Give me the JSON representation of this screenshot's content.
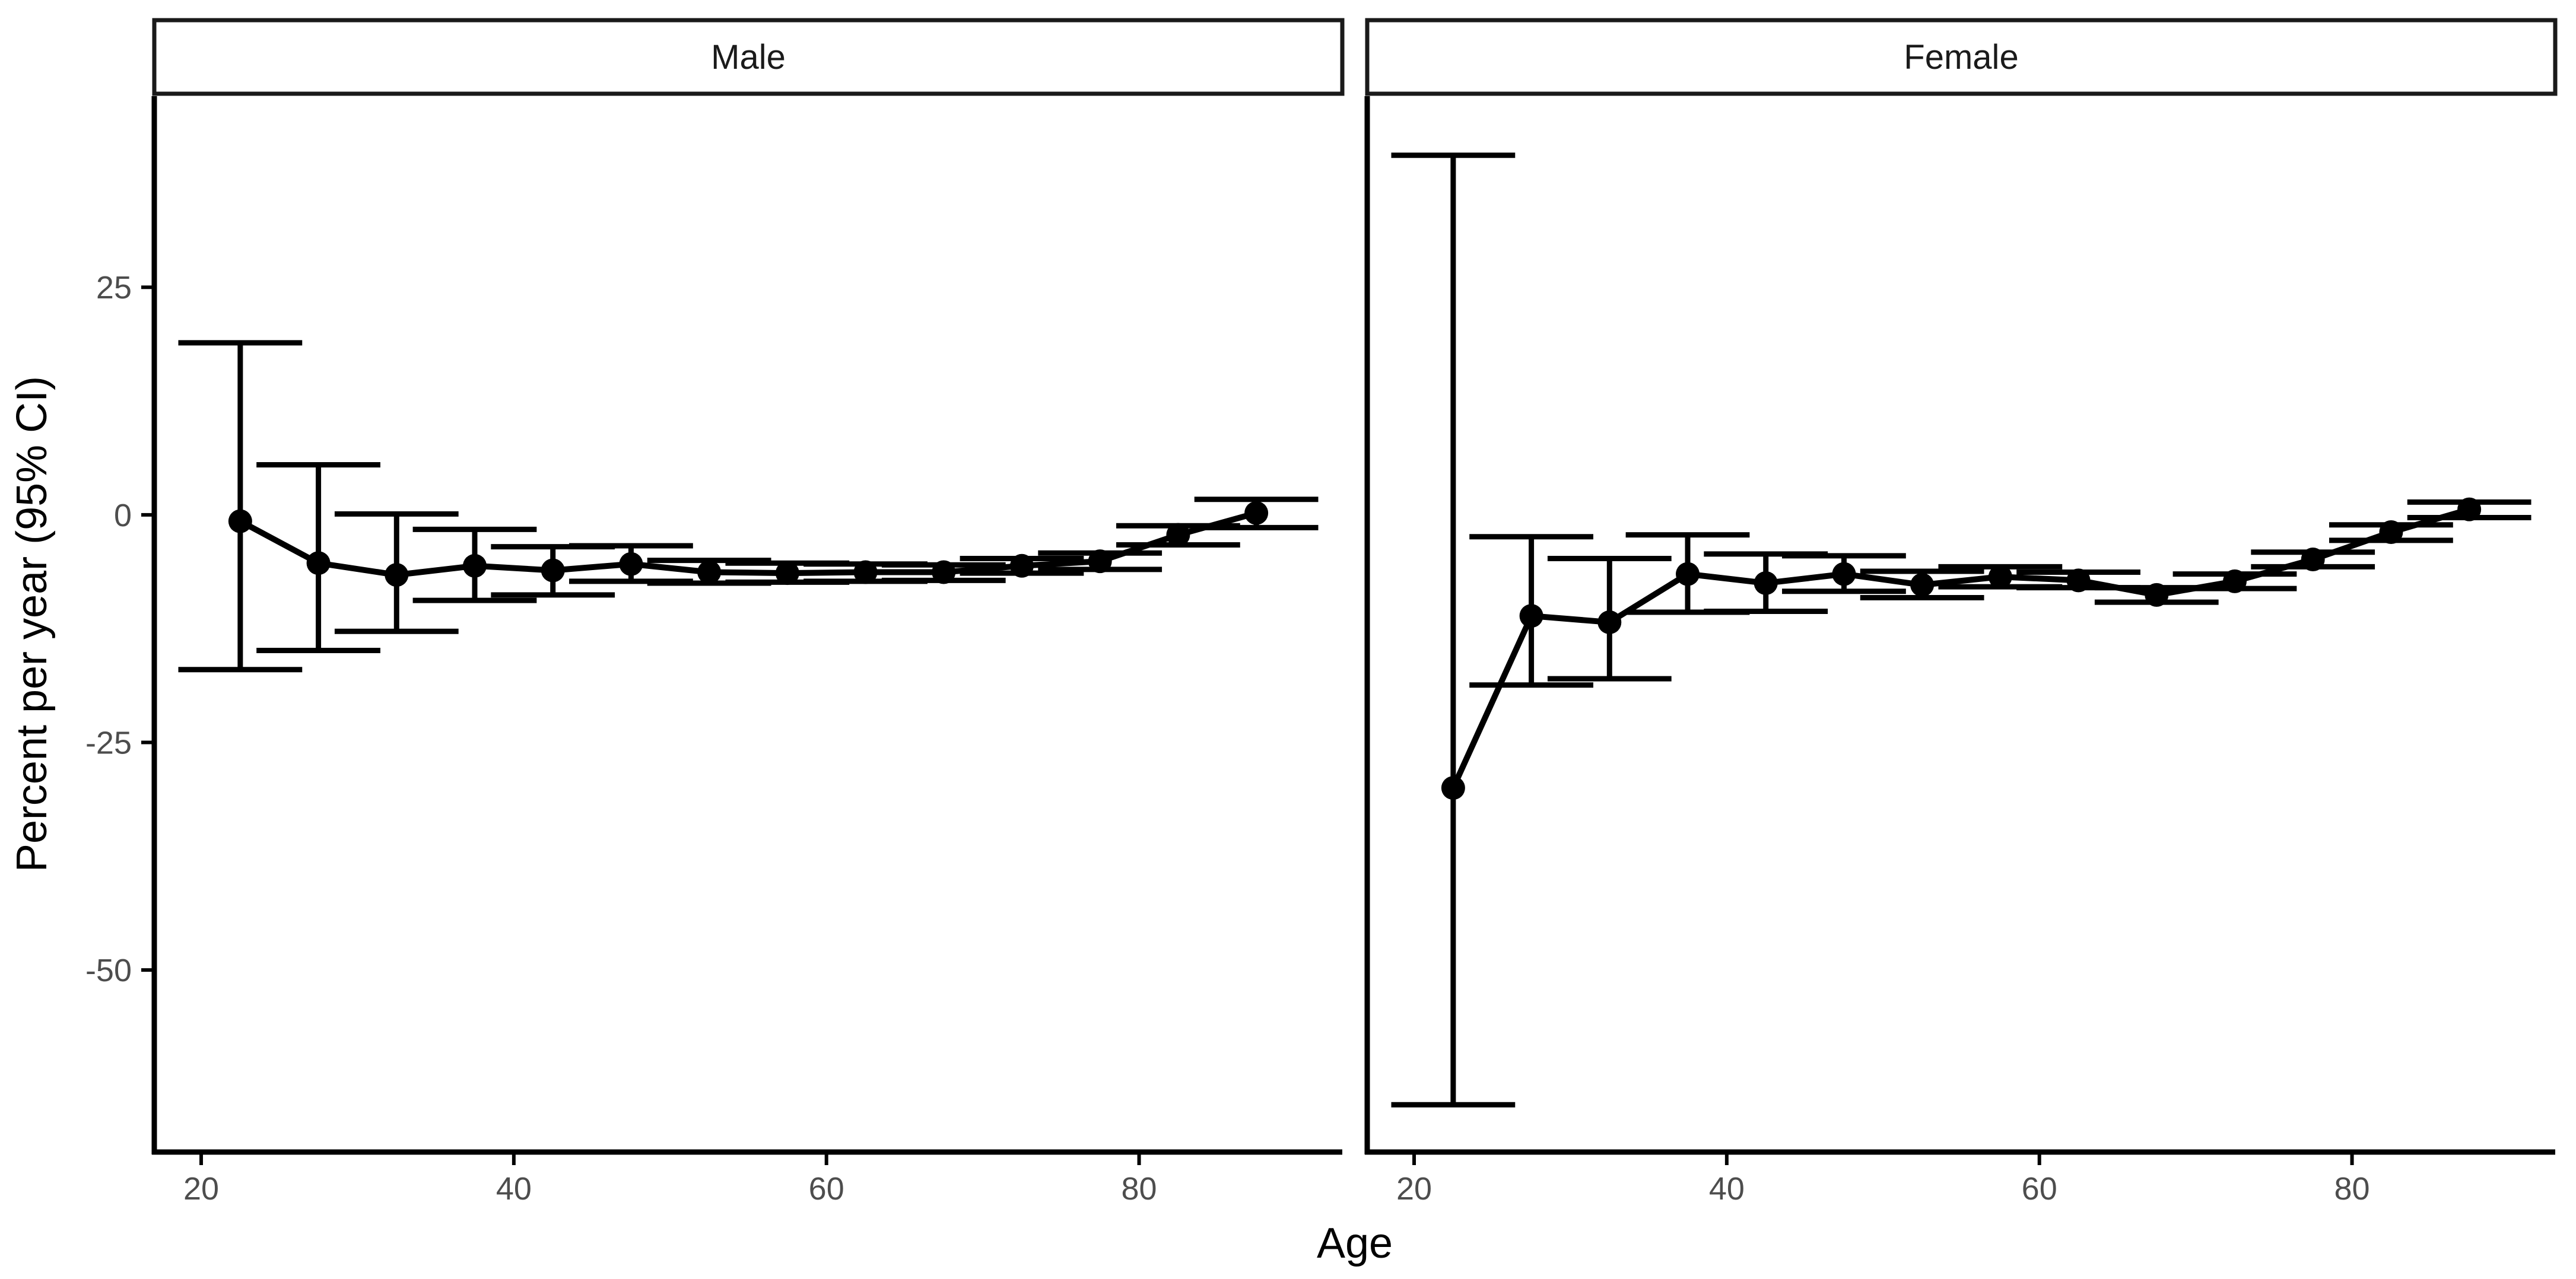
{
  "chart_data": {
    "type": "line",
    "xlabel": "Age",
    "ylabel": "Percent per year (95% CI)",
    "xlim": [
      17,
      93
    ],
    "ylim": [
      -70,
      46
    ],
    "x_ticks": [
      20,
      40,
      60,
      80
    ],
    "y_ticks": [
      25,
      0,
      -25,
      -50
    ],
    "x_tick_labels": [
      "20",
      "40",
      "60",
      "80"
    ],
    "y_tick_labels": [
      "25",
      "0",
      "-25",
      "-50"
    ],
    "colors": {
      "line": "#000000",
      "axis": "#000000",
      "tick_text": "#4d4d4d"
    },
    "panels": [
      {
        "label": "Male",
        "x": [
          22.5,
          27.5,
          32.5,
          37.5,
          42.5,
          47.5,
          52.5,
          57.5,
          62.5,
          67.5,
          72.5,
          77.5,
          82.5,
          87.5
        ],
        "y": [
          -0.7,
          -5.3,
          -6.6,
          -5.6,
          -6.1,
          -5.4,
          -6.3,
          -6.4,
          -6.3,
          -6.3,
          -5.6,
          -5.1,
          -2.2,
          0.2
        ],
        "lower": [
          -17.0,
          -14.9,
          -12.8,
          -9.4,
          -8.8,
          -7.3,
          -7.5,
          -7.4,
          -7.3,
          -7.2,
          -6.4,
          -6.0,
          -3.3,
          -1.4
        ],
        "upper": [
          18.9,
          5.5,
          0.1,
          -1.6,
          -3.5,
          -3.4,
          -5.0,
          -5.3,
          -5.4,
          -5.5,
          -4.8,
          -4.2,
          -1.2,
          1.7
        ]
      },
      {
        "label": "Female",
        "x": [
          22.5,
          27.5,
          32.5,
          37.5,
          42.5,
          47.5,
          52.5,
          57.5,
          62.5,
          67.5,
          72.5,
          77.5,
          82.5,
          87.5
        ],
        "y": [
          -30.0,
          -11.1,
          -11.8,
          -6.5,
          -7.5,
          -6.5,
          -7.7,
          -6.8,
          -7.2,
          -8.8,
          -7.3,
          -4.9,
          -1.9,
          0.6
        ],
        "lower": [
          -64.8,
          -18.7,
          -18.0,
          -10.7,
          -10.6,
          -8.4,
          -9.1,
          -7.9,
          -8.0,
          -9.6,
          -8.1,
          -5.7,
          -2.8,
          -0.3
        ],
        "upper": [
          39.5,
          -2.4,
          -4.8,
          -2.2,
          -4.3,
          -4.5,
          -6.2,
          -5.7,
          -6.3,
          -8.0,
          -6.5,
          -4.1,
          -1.1,
          1.4
        ]
      }
    ]
  }
}
